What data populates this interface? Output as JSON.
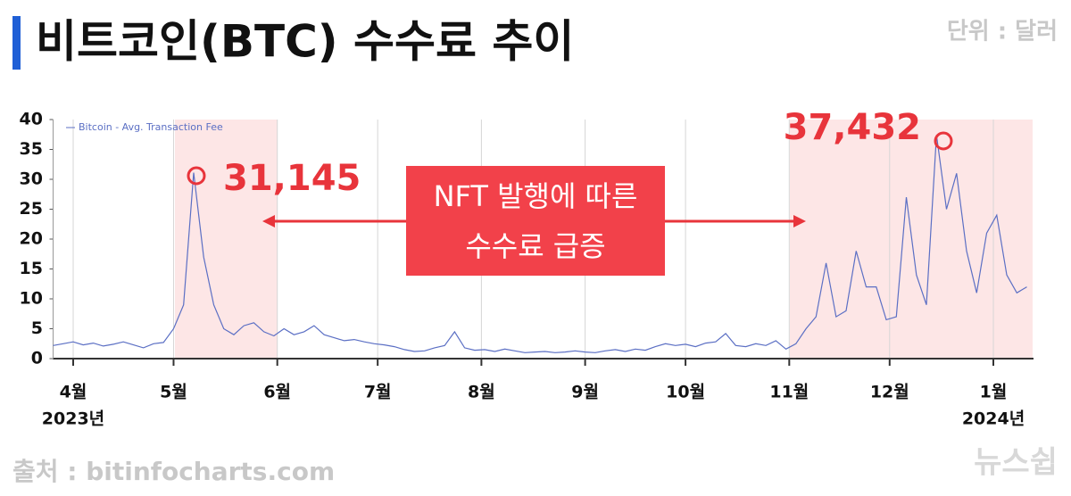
{
  "chart_data": {
    "type": "line",
    "title": "비트코인(BTC) 수수료 추이",
    "unit": "단위 : 달러",
    "source": "출처 : bitinfocharts.com",
    "brand": "뉴스쉽",
    "annotations": [
      "31,145",
      "37,432"
    ],
    "callout": [
      "NFT 발행에 따른",
      "수수료 급증"
    ],
    "x": [
      -6,
      -3,
      0,
      3,
      6,
      9,
      12,
      15,
      18,
      21,
      24,
      27,
      30,
      33,
      36,
      39,
      42,
      45,
      48,
      51,
      54,
      57,
      60,
      63,
      66,
      69,
      72,
      75,
      78,
      81,
      84,
      87,
      90,
      93,
      96,
      99,
      102,
      105,
      108,
      111,
      114,
      117,
      120,
      123,
      126,
      129,
      132,
      135,
      138,
      141,
      144,
      147,
      150,
      153,
      156,
      159,
      162,
      165,
      168,
      171,
      174,
      177,
      180,
      183,
      186,
      189,
      192,
      195,
      198,
      201,
      204,
      207,
      210,
      213,
      216,
      219,
      222,
      225,
      228,
      231,
      234,
      237,
      240,
      243,
      246,
      249,
      252,
      255,
      258,
      261,
      264,
      267,
      270,
      273,
      276,
      279,
      282,
      285
    ],
    "series": [
      {
        "name": "Bitcoin - Avg. Transaction Fee",
        "color": "#5b6fc4",
        "values": [
          2.2,
          2.5,
          2.8,
          2.3,
          2.6,
          2.1,
          2.4,
          2.8,
          2.3,
          1.8,
          2.5,
          2.7,
          5,
          9,
          31.1,
          17,
          9,
          5,
          4,
          5.5,
          6,
          4.5,
          3.8,
          5,
          4,
          4.5,
          5.5,
          4,
          3.5,
          3,
          3.2,
          2.8,
          2.5,
          2.3,
          2,
          1.5,
          1.2,
          1.3,
          1.8,
          2.2,
          4.5,
          1.8,
          1.4,
          1.5,
          1.2,
          1.6,
          1.3,
          1.0,
          1.1,
          1.2,
          1.0,
          1.1,
          1.3,
          1.1,
          1.0,
          1.3,
          1.5,
          1.2,
          1.6,
          1.4,
          2.0,
          2.5,
          2.2,
          2.4,
          2.0,
          2.6,
          2.8,
          4.2,
          2.2,
          2.0,
          2.5,
          2.2,
          3.0,
          1.6,
          2.5,
          5,
          7,
          16,
          7,
          8,
          18,
          12,
          12,
          6.5,
          7,
          27,
          14,
          9,
          37.4,
          25,
          31,
          18,
          11,
          21,
          24,
          14,
          11,
          12
        ]
      }
    ],
    "xlim": [
      -6,
      287
    ],
    "xticks": [
      {
        "value": 0,
        "label": "4월"
      },
      {
        "value": 30,
        "label": "5월"
      },
      {
        "value": 61,
        "label": "6월"
      },
      {
        "value": 91,
        "label": "7월"
      },
      {
        "value": 122,
        "label": "8월"
      },
      {
        "value": 153,
        "label": "9월"
      },
      {
        "value": 183,
        "label": "10월"
      },
      {
        "value": 214,
        "label": "11월"
      },
      {
        "value": 244,
        "label": "12월"
      },
      {
        "value": 275,
        "label": "1월"
      }
    ],
    "year_labels": [
      {
        "value": 0,
        "label": "2023년"
      },
      {
        "value": 275,
        "label": "2024년"
      }
    ],
    "ylim": [
      0,
      40
    ],
    "yticks": [
      0,
      5,
      10,
      15,
      20,
      25,
      30,
      35,
      40
    ],
    "grid": true
  }
}
